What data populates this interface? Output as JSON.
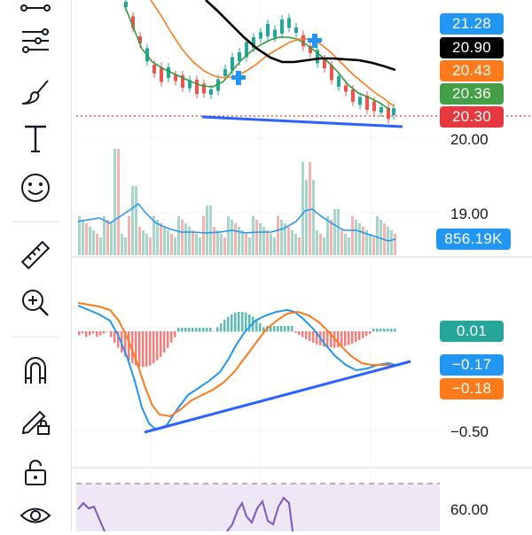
{
  "toolbar": {
    "tools": [
      {
        "name": "line-tool-icon"
      },
      {
        "name": "fib-tool-icon"
      },
      {
        "name": "brush-icon"
      },
      {
        "name": "text-tool-icon"
      },
      {
        "name": "emoji-icon"
      },
      {
        "name": "ruler-icon"
      },
      {
        "name": "zoom-in-icon"
      },
      {
        "name": "magnet-icon"
      },
      {
        "name": "lock-drawing-icon"
      },
      {
        "name": "unlock-icon"
      },
      {
        "name": "eye-icon"
      }
    ]
  },
  "price_pane": {
    "badges": [
      {
        "text": "21.28",
        "color": "#2196f3"
      },
      {
        "text": "20.90",
        "color": "#000000"
      },
      {
        "text": "20.43",
        "color": "#ff7a1a"
      },
      {
        "text": "20.36",
        "color": "#43a047"
      },
      {
        "text": "20.30",
        "color": "#e5383f"
      }
    ],
    "axis_label": "20.00",
    "colors": {
      "up": "#26a69a",
      "down": "#ef5350",
      "ma_fast": "#2e9e3e",
      "ma_mid": "#ff7a1a",
      "ma_slow": "#000000",
      "trendline": "#2962ff",
      "markers": "#2196f3"
    }
  },
  "volume_pane": {
    "axis_label": "19.00",
    "badge": {
      "text": "856.19K",
      "color": "#2196f3"
    },
    "colors": {
      "up": "#a5d6c9",
      "down": "#f5b2b0",
      "ma": "#2196f3"
    }
  },
  "macd_pane": {
    "badges": [
      {
        "text": "0.01",
        "color": "#26a69a"
      },
      {
        "text": "−0.17",
        "color": "#2196f3"
      },
      {
        "text": "−0.18",
        "color": "#ff7a1a"
      }
    ],
    "axis_label": "−0.50",
    "colors": {
      "macd": "#2196f3",
      "signal": "#ff7a1a",
      "hist_up": "#26a69a",
      "hist_down": "#ef5350",
      "trendline": "#2962ff"
    }
  },
  "rsi_pane": {
    "axis_label": "60.00",
    "colors": {
      "line": "#7e57c2",
      "fill": "#ede7f6"
    }
  }
}
